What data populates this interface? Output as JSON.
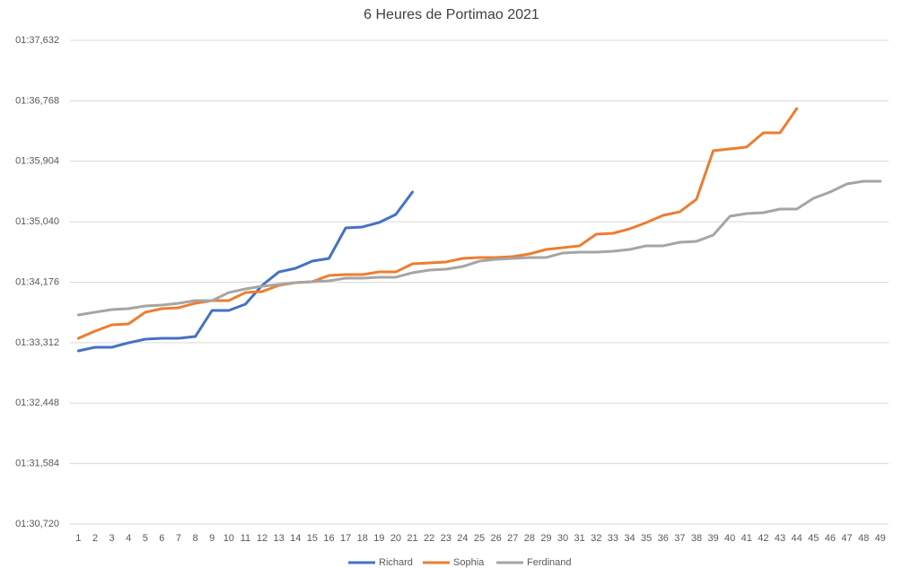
{
  "chart_data": {
    "type": "line",
    "title": "6 Heures de Portimao 2021",
    "categories": [
      1,
      2,
      3,
      4,
      5,
      6,
      7,
      8,
      9,
      10,
      11,
      12,
      13,
      14,
      15,
      16,
      17,
      18,
      19,
      20,
      21,
      22,
      23,
      24,
      25,
      26,
      27,
      28,
      29,
      30,
      31,
      32,
      33,
      34,
      35,
      36,
      37,
      38,
      39,
      40,
      41,
      42,
      43,
      44,
      45,
      46,
      47,
      48,
      49
    ],
    "series": [
      {
        "name": "Richard",
        "color": "#4472c4",
        "values": [
          93.195,
          93.246,
          93.246,
          93.31,
          93.362,
          93.374,
          93.374,
          93.4,
          93.772,
          93.772,
          93.862,
          94.131,
          94.323,
          94.375,
          94.477,
          94.516,
          94.952,
          94.965,
          95.029,
          95.144,
          95.465,
          null,
          null,
          null,
          null,
          null,
          null,
          null,
          null,
          null,
          null,
          null,
          null,
          null,
          null,
          null,
          null,
          null,
          null,
          null,
          null,
          null,
          null,
          null,
          null,
          null,
          null,
          null,
          null
        ]
      },
      {
        "name": "Sophia",
        "color": "#ed7d31",
        "values": [
          93.374,
          93.477,
          93.567,
          93.58,
          93.746,
          93.798,
          93.811,
          93.875,
          93.913,
          93.913,
          94.028,
          94.041,
          94.131,
          94.17,
          94.183,
          94.272,
          94.285,
          94.285,
          94.323,
          94.323,
          94.439,
          94.452,
          94.465,
          94.516,
          94.529,
          94.529,
          94.542,
          94.58,
          94.644,
          94.67,
          94.696,
          94.862,
          94.875,
          94.939,
          95.029,
          95.131,
          95.182,
          95.362,
          96.055,
          96.081,
          96.107,
          96.311,
          96.311,
          96.657,
          null,
          null,
          null,
          null,
          null
        ]
      },
      {
        "name": "Ferdinand",
        "color": "#a5a5a5",
        "values": [
          93.708,
          93.747,
          93.785,
          93.798,
          93.836,
          93.849,
          93.875,
          93.913,
          93.913,
          94.028,
          94.08,
          94.118,
          94.144,
          94.17,
          94.183,
          94.196,
          94.234,
          94.234,
          94.247,
          94.247,
          94.311,
          94.349,
          94.362,
          94.4,
          94.477,
          94.503,
          94.516,
          94.529,
          94.529,
          94.593,
          94.606,
          94.606,
          94.619,
          94.644,
          94.696,
          94.696,
          94.747,
          94.76,
          94.849,
          95.118,
          95.157,
          95.17,
          95.221,
          95.221,
          95.375,
          95.465,
          95.58,
          95.619,
          95.619
        ]
      }
    ],
    "ylim": [
      90.72,
      97.632
    ],
    "yticks": [
      {
        "value": 90.72,
        "label": "01:30,720"
      },
      {
        "value": 91.584,
        "label": "01:31,584"
      },
      {
        "value": 92.448,
        "label": "01:32,448"
      },
      {
        "value": 93.312,
        "label": "01:33,312"
      },
      {
        "value": 94.176,
        "label": "01:34,176"
      },
      {
        "value": 95.04,
        "label": "01:35,040"
      },
      {
        "value": 95.904,
        "label": "01:35,904"
      },
      {
        "value": 96.768,
        "label": "01:36,768"
      },
      {
        "value": 97.632,
        "label": "01:37,632"
      }
    ],
    "grid": true,
    "legend": "bottom"
  }
}
